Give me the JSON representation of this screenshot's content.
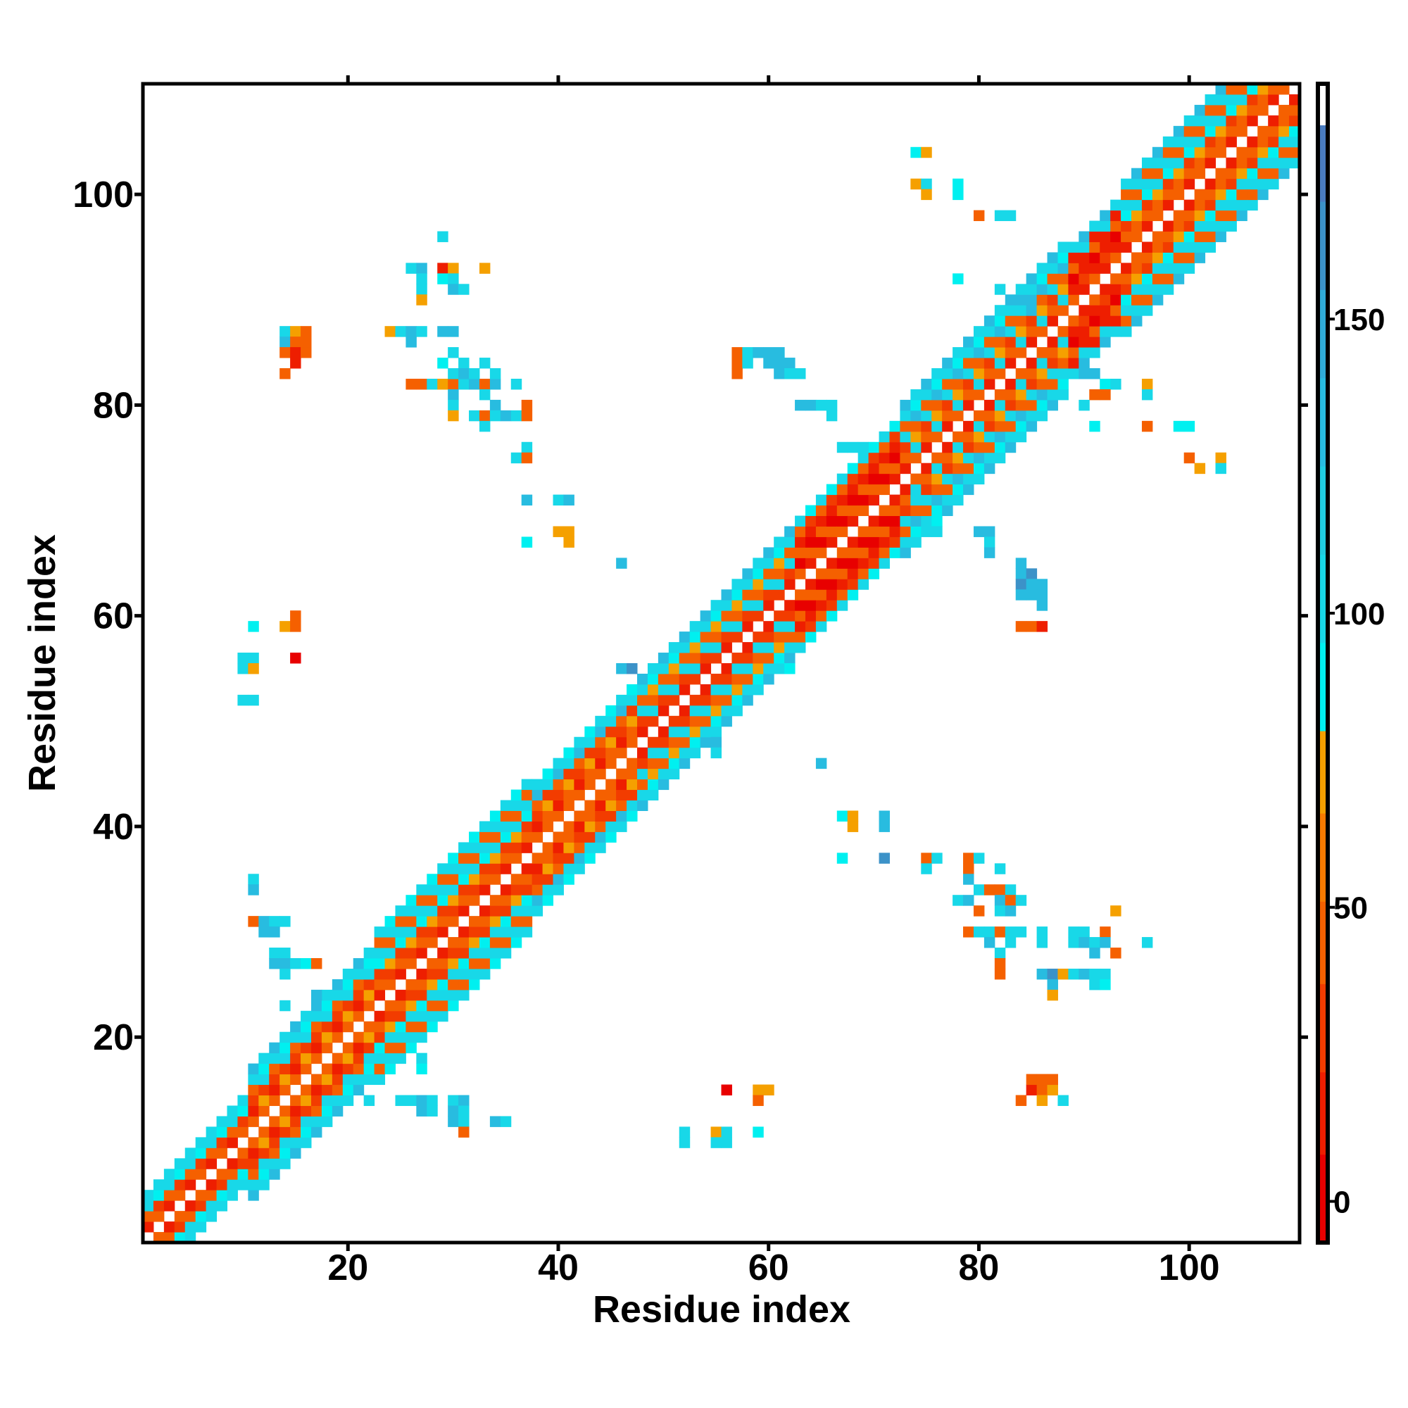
{
  "chart_data": {
    "type": "heatmap",
    "title": "",
    "xlabel": "Residue index",
    "ylabel": "Residue index",
    "xlim": [
      0.5,
      110.5
    ],
    "ylim": [
      0.5,
      110.5
    ],
    "xticks": [
      "20",
      "40",
      "60",
      "80",
      "100"
    ],
    "xtick_values": [
      20,
      40,
      60,
      80,
      100
    ],
    "yticks": [
      "20",
      "40",
      "60",
      "80",
      "100"
    ],
    "ytick_values": [
      20,
      40,
      60,
      80,
      100
    ],
    "colorbar": {
      "range": [
        -7,
        190
      ],
      "ticks": [
        "0",
        "50",
        "100",
        "150"
      ],
      "tick_values": [
        0,
        50,
        100,
        150
      ],
      "bins": [
        {
          "from": -7,
          "to": 8,
          "color": "#e80000"
        },
        {
          "from": 8,
          "to": 22,
          "color": "#ee1e00"
        },
        {
          "from": 22,
          "to": 37,
          "color": "#f23c00"
        },
        {
          "from": 37,
          "to": 51,
          "color": "#f56000"
        },
        {
          "from": 51,
          "to": 66,
          "color": "#f87a00"
        },
        {
          "from": 66,
          "to": 80,
          "color": "#f5a000"
        },
        {
          "from": 80,
          "to": 95,
          "color": "#00f0f0"
        },
        {
          "from": 95,
          "to": 110,
          "color": "#18d8e8"
        },
        {
          "from": 110,
          "to": 125,
          "color": "#20cce0"
        },
        {
          "from": 125,
          "to": 140,
          "color": "#28bce0"
        },
        {
          "from": 140,
          "to": 155,
          "color": "#30acd8"
        },
        {
          "from": 155,
          "to": 170,
          "color": "#3c92c8"
        },
        {
          "from": 170,
          "to": 183,
          "color": "#4a7cc0"
        },
        {
          "from": 183,
          "to": 190,
          "color": "#ffffff"
        }
      ]
    },
    "code_values": {
      "r": 2,
      "R": 15,
      "o": 30,
      "O": 45,
      "y": 70,
      "C": 88,
      "c": 100,
      "b": 135,
      "s": 160
    },
    "diagonal_band": [
      {
        "from": 1,
        "to": 10,
        "patterns": [
          "ccOR.ROcc",
          "cCoO.OoCc"
        ]
      },
      {
        "from": 11,
        "to": 22,
        "patterns": [
          "bcOoRO.ORoOcb",
          "cCcoyO.OyocCc"
        ]
      },
      {
        "from": 23,
        "to": 37,
        "patterns": [
          "cOcCoOR.ROoCcOc",
          "CcOcyoO.OoycOcC"
        ]
      },
      {
        "from": 38,
        "to": 47,
        "patterns": [
          "cbOoRO.ORoObc",
          "CcoyOO.OOyocC"
        ]
      },
      {
        "from": 48,
        "to": 62,
        "patterns": [
          "bcOcoR.RocOcb",
          "cCyOco.ocOyCc"
        ]
      },
      {
        "from": 63,
        "to": 72,
        "patterns": [
          "cOROrO.OrOROc",
          "CoRrOR.ROrRoC"
        ]
      },
      {
        "from": 73,
        "to": 88,
        "patterns": [
          "bcOcoOR.ROocOcb",
          "cCbOycO.OcyObCc"
        ]
      },
      {
        "from": 89,
        "to": 93,
        "patterns": [
          "cROrRO.ORrORc",
          "bcRRoR.RoRRcb"
        ]
      },
      {
        "from": 94,
        "to": 110,
        "patterns": [
          "cOcCoOR.ROoCcOc",
          "bcOcyOO.OOycOcb"
        ]
      }
    ],
    "contacts": [
      [
        29,
        96,
        "c"
      ],
      [
        26,
        93,
        "c"
      ],
      [
        27,
        93,
        "b"
      ],
      [
        29,
        93,
        "R"
      ],
      [
        30,
        93,
        "y"
      ],
      [
        33,
        93,
        "y"
      ],
      [
        27,
        92,
        "c"
      ],
      [
        29,
        92,
        "C"
      ],
      [
        30,
        92,
        "c"
      ],
      [
        27,
        91,
        "c"
      ],
      [
        30,
        91,
        "b"
      ],
      [
        31,
        91,
        "c"
      ],
      [
        27,
        90,
        "y"
      ],
      [
        24,
        87,
        "y"
      ],
      [
        25,
        87,
        "c"
      ],
      [
        26,
        87,
        "b"
      ],
      [
        27,
        87,
        "c"
      ],
      [
        29,
        87,
        "b"
      ],
      [
        30,
        87,
        "b"
      ],
      [
        26,
        86,
        "b"
      ],
      [
        14,
        87,
        "c"
      ],
      [
        15,
        87,
        "y"
      ],
      [
        16,
        87,
        "O"
      ],
      [
        14,
        86,
        "b"
      ],
      [
        15,
        86,
        "O"
      ],
      [
        16,
        86,
        "O"
      ],
      [
        14,
        85,
        "O"
      ],
      [
        15,
        85,
        "R"
      ],
      [
        16,
        85,
        "O"
      ],
      [
        15,
        84,
        "R"
      ],
      [
        14,
        83,
        "O"
      ],
      [
        30,
        85,
        "c"
      ],
      [
        29,
        84,
        "C"
      ],
      [
        31,
        84,
        "c"
      ],
      [
        33,
        84,
        "c"
      ],
      [
        26,
        82,
        "O"
      ],
      [
        27,
        82,
        "O"
      ],
      [
        28,
        82,
        "c"
      ],
      [
        29,
        82,
        "y"
      ],
      [
        30,
        82,
        "O"
      ],
      [
        31,
        82,
        "c"
      ],
      [
        32,
        82,
        "b"
      ],
      [
        33,
        82,
        "O"
      ],
      [
        34,
        82,
        "b"
      ],
      [
        36,
        82,
        "c"
      ],
      [
        30,
        83,
        "c"
      ],
      [
        31,
        83,
        "b"
      ],
      [
        32,
        83,
        "c"
      ],
      [
        34,
        83,
        "c"
      ],
      [
        30,
        81,
        "b"
      ],
      [
        33,
        81,
        "c"
      ],
      [
        34,
        80,
        "b"
      ],
      [
        30,
        80,
        "c"
      ],
      [
        37,
        80,
        "O"
      ],
      [
        30,
        79,
        "y"
      ],
      [
        32,
        79,
        "c"
      ],
      [
        33,
        79,
        "O"
      ],
      [
        34,
        79,
        "c"
      ],
      [
        35,
        79,
        "b"
      ],
      [
        36,
        79,
        "c"
      ],
      [
        37,
        79,
        "O"
      ],
      [
        33,
        78,
        "c"
      ],
      [
        37,
        76,
        "c"
      ],
      [
        36,
        75,
        "c"
      ],
      [
        37,
        75,
        "O"
      ],
      [
        37,
        71,
        "b"
      ],
      [
        40,
        71,
        "c"
      ],
      [
        41,
        71,
        "b"
      ],
      [
        40,
        68,
        "y"
      ],
      [
        41,
        68,
        "y"
      ],
      [
        37,
        67,
        "C"
      ],
      [
        41,
        67,
        "y"
      ],
      [
        46,
        65,
        "b"
      ],
      [
        11,
        59,
        "C"
      ],
      [
        14,
        59,
        "y"
      ],
      [
        15,
        59,
        "O"
      ],
      [
        15,
        60,
        "O"
      ],
      [
        10,
        56,
        "c"
      ],
      [
        11,
        56,
        "c"
      ],
      [
        10,
        55,
        "c"
      ],
      [
        11,
        55,
        "y"
      ],
      [
        15,
        56,
        "r"
      ],
      [
        10,
        52,
        "c"
      ],
      [
        11,
        52,
        "c"
      ],
      [
        11,
        35,
        "c"
      ],
      [
        11,
        34,
        "b"
      ],
      [
        11,
        31,
        "O"
      ],
      [
        12,
        31,
        "b"
      ],
      [
        13,
        31,
        "c"
      ],
      [
        14,
        31,
        "c"
      ],
      [
        12,
        30,
        "b"
      ],
      [
        13,
        30,
        "b"
      ],
      [
        13,
        28,
        "c"
      ],
      [
        14,
        28,
        "c"
      ],
      [
        13,
        27,
        "b"
      ],
      [
        14,
        27,
        "b"
      ],
      [
        15,
        27,
        "c"
      ],
      [
        16,
        27,
        "C"
      ],
      [
        17,
        27,
        "O"
      ],
      [
        14,
        26,
        "c"
      ],
      [
        14,
        23,
        "c"
      ],
      [
        17,
        24,
        "b"
      ],
      [
        27,
        18,
        "c"
      ],
      [
        27,
        17,
        "C"
      ],
      [
        22,
        14,
        "c"
      ],
      [
        25,
        14,
        "c"
      ],
      [
        26,
        14,
        "c"
      ],
      [
        27,
        14,
        "b"
      ],
      [
        28,
        14,
        "c"
      ],
      [
        30,
        14,
        "c"
      ],
      [
        31,
        14,
        "b"
      ],
      [
        27,
        13,
        "b"
      ],
      [
        28,
        13,
        "c"
      ],
      [
        30,
        13,
        "b"
      ],
      [
        31,
        13,
        "c"
      ],
      [
        30,
        12,
        "b"
      ],
      [
        31,
        12,
        "c"
      ],
      [
        31,
        11,
        "O"
      ],
      [
        34,
        12,
        "b"
      ],
      [
        35,
        12,
        "c"
      ],
      [
        52,
        11,
        "c"
      ],
      [
        52,
        10,
        "c"
      ],
      [
        55,
        11,
        "y"
      ],
      [
        56,
        11,
        "c"
      ],
      [
        55,
        10,
        "c"
      ],
      [
        56,
        10,
        "c"
      ],
      [
        59,
        11,
        "C"
      ],
      [
        56,
        15,
        "r"
      ],
      [
        59,
        15,
        "y"
      ],
      [
        60,
        15,
        "y"
      ],
      [
        59,
        14,
        "O"
      ],
      [
        84,
        14,
        "O"
      ],
      [
        85,
        15,
        "R"
      ],
      [
        86,
        15,
        "O"
      ],
      [
        87,
        15,
        "y"
      ],
      [
        85,
        16,
        "O"
      ],
      [
        86,
        16,
        "O"
      ],
      [
        87,
        16,
        "O"
      ],
      [
        86,
        14,
        "y"
      ],
      [
        88,
        14,
        "c"
      ],
      [
        55,
        48,
        "b"
      ],
      [
        55,
        47,
        "c"
      ],
      [
        65,
        46,
        "b"
      ],
      [
        67,
        41,
        "C"
      ],
      [
        68,
        41,
        "y"
      ],
      [
        71,
        41,
        "b"
      ],
      [
        68,
        40,
        "y"
      ],
      [
        71,
        40,
        "b"
      ],
      [
        67,
        37,
        "C"
      ],
      [
        71,
        37,
        "s"
      ],
      [
        75,
        37,
        "O"
      ],
      [
        76,
        37,
        "c"
      ],
      [
        79,
        37,
        "O"
      ],
      [
        80,
        37,
        "c"
      ],
      [
        82,
        36,
        "c"
      ],
      [
        75,
        36,
        "c"
      ],
      [
        79,
        36,
        "O"
      ],
      [
        79,
        35,
        "b"
      ],
      [
        80,
        34,
        "c"
      ],
      [
        82,
        34,
        "O"
      ],
      [
        81,
        34,
        "O"
      ],
      [
        83,
        34,
        "c"
      ],
      [
        78,
        33,
        "c"
      ],
      [
        79,
        33,
        "b"
      ],
      [
        82,
        33,
        "b"
      ],
      [
        83,
        33,
        "O"
      ],
      [
        84,
        33,
        "c"
      ],
      [
        80,
        32,
        "O"
      ],
      [
        82,
        32,
        "c"
      ],
      [
        83,
        32,
        "b"
      ],
      [
        93,
        32,
        "y"
      ],
      [
        79,
        30,
        "O"
      ],
      [
        80,
        30,
        "c"
      ],
      [
        81,
        30,
        "c"
      ],
      [
        82,
        30,
        "O"
      ],
      [
        83,
        30,
        "c"
      ],
      [
        84,
        30,
        "c"
      ],
      [
        86,
        30,
        "c"
      ],
      [
        89,
        30,
        "c"
      ],
      [
        90,
        30,
        "c"
      ],
      [
        92,
        30,
        "O"
      ],
      [
        81,
        29,
        "b"
      ],
      [
        83,
        29,
        "c"
      ],
      [
        86,
        29,
        "c"
      ],
      [
        89,
        29,
        "c"
      ],
      [
        90,
        29,
        "b"
      ],
      [
        91,
        29,
        "c"
      ],
      [
        92,
        29,
        "b"
      ],
      [
        96,
        29,
        "c"
      ],
      [
        82,
        28,
        "c"
      ],
      [
        93,
        28,
        "O"
      ],
      [
        91,
        28,
        "b"
      ],
      [
        82,
        27,
        "O"
      ],
      [
        82,
        26,
        "O"
      ],
      [
        86,
        26,
        "b"
      ],
      [
        87,
        26,
        "s"
      ],
      [
        88,
        26,
        "y"
      ],
      [
        89,
        26,
        "c"
      ],
      [
        90,
        26,
        "b"
      ],
      [
        91,
        26,
        "c"
      ],
      [
        92,
        26,
        "c"
      ],
      [
        91,
        25,
        "c"
      ],
      [
        92,
        25,
        "C"
      ],
      [
        87,
        25,
        "b"
      ],
      [
        87,
        24,
        "y"
      ],
      [
        74,
        104,
        "C"
      ],
      [
        75,
        104,
        "y"
      ],
      [
        74,
        101,
        "y"
      ],
      [
        75,
        101,
        "c"
      ],
      [
        78,
        101,
        "C"
      ],
      [
        75,
        100,
        "y"
      ],
      [
        78,
        100,
        "C"
      ],
      [
        80,
        98,
        "O"
      ],
      [
        82,
        98,
        "c"
      ],
      [
        83,
        98,
        "c"
      ],
      [
        78,
        92,
        "C"
      ],
      [
        57,
        85,
        "O"
      ],
      [
        58,
        85,
        "c"
      ],
      [
        59,
        85,
        "b"
      ],
      [
        60,
        85,
        "b"
      ],
      [
        61,
        85,
        "b"
      ],
      [
        57,
        84,
        "O"
      ],
      [
        58,
        84,
        "c"
      ],
      [
        60,
        84,
        "b"
      ],
      [
        61,
        84,
        "b"
      ],
      [
        62,
        84,
        "b"
      ],
      [
        57,
        83,
        "O"
      ],
      [
        61,
        83,
        "b"
      ],
      [
        62,
        83,
        "c"
      ],
      [
        63,
        83,
        "c"
      ],
      [
        63,
        80,
        "b"
      ],
      [
        64,
        80,
        "b"
      ],
      [
        65,
        80,
        "c"
      ],
      [
        66,
        80,
        "c"
      ],
      [
        66,
        79,
        "c"
      ],
      [
        67,
        76,
        "c"
      ],
      [
        68,
        76,
        "c"
      ],
      [
        69,
        76,
        "c"
      ],
      [
        74,
        71,
        "c"
      ],
      [
        76,
        69,
        "C"
      ],
      [
        75,
        68,
        "c"
      ],
      [
        76,
        68,
        "c"
      ],
      [
        80,
        68,
        "b"
      ],
      [
        81,
        68,
        "b"
      ],
      [
        81,
        67,
        "c"
      ],
      [
        81,
        66,
        "b"
      ],
      [
        84,
        65,
        "b"
      ],
      [
        84,
        64,
        "b"
      ],
      [
        85,
        64,
        "s"
      ],
      [
        84,
        63,
        "s"
      ],
      [
        85,
        63,
        "b"
      ],
      [
        86,
        63,
        "b"
      ],
      [
        84,
        62,
        "b"
      ],
      [
        85,
        62,
        "b"
      ],
      [
        86,
        62,
        "b"
      ],
      [
        86,
        61,
        "b"
      ],
      [
        84,
        59,
        "O"
      ],
      [
        85,
        59,
        "O"
      ],
      [
        86,
        59,
        "R"
      ],
      [
        46,
        55,
        "b"
      ],
      [
        47,
        55,
        "s"
      ],
      [
        62,
        55,
        "C"
      ],
      [
        92,
        82,
        "C"
      ],
      [
        93,
        82,
        "c"
      ],
      [
        91,
        81,
        "O"
      ],
      [
        92,
        81,
        "O"
      ],
      [
        96,
        82,
        "y"
      ],
      [
        96,
        81,
        "c"
      ],
      [
        90,
        80,
        "c"
      ],
      [
        91,
        78,
        "C"
      ],
      [
        96,
        78,
        "O"
      ],
      [
        99,
        78,
        "C"
      ],
      [
        100,
        78,
        "C"
      ],
      [
        100,
        75,
        "O"
      ],
      [
        101,
        74,
        "y"
      ],
      [
        103,
        75,
        "y"
      ],
      [
        103,
        74,
        "c"
      ],
      [
        88,
        83,
        "c"
      ],
      [
        90,
        83,
        "b"
      ],
      [
        91,
        83,
        "b"
      ],
      [
        82,
        91,
        "c"
      ],
      [
        83,
        90,
        "b"
      ],
      [
        84,
        90,
        "b"
      ],
      [
        85,
        90,
        "b"
      ],
      [
        84,
        89,
        "c"
      ],
      [
        85,
        89,
        "b"
      ]
    ]
  }
}
